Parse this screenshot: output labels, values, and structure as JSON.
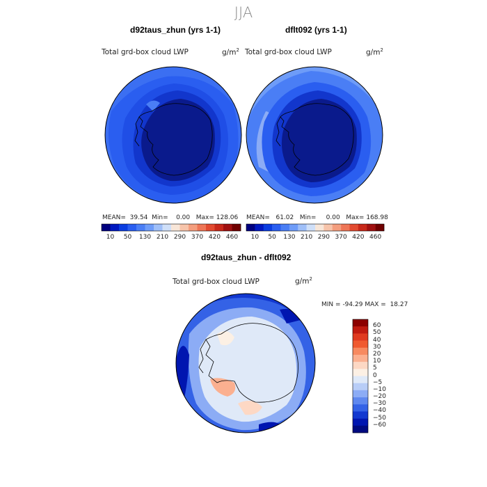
{
  "season": "JJA",
  "panels": [
    {
      "title": "d92taus_zhun (yrs 1-1)",
      "variable": "Total grd-box cloud LWP",
      "unit_base": "g/m",
      "unit_exp": "2",
      "mean_label": "MEAN=",
      "mean": "39.54",
      "min_label": "Min=",
      "min": "0.00",
      "max_label": "Max=",
      "max": "128.06"
    },
    {
      "title": "dflt092 (yrs 1-1)",
      "variable": "Total grd-box cloud LWP",
      "unit_base": "g/m",
      "unit_exp": "2",
      "mean_label": "MEAN=",
      "mean": "61.02",
      "min_label": "Min=",
      "min": "0.00",
      "max_label": "Max=",
      "max": "168.98"
    }
  ],
  "abs_colorbar": {
    "ticks": [
      "10",
      "50",
      "130",
      "210",
      "290",
      "370",
      "420",
      "460"
    ],
    "colors": [
      "#00007f",
      "#0018c0",
      "#0a3de0",
      "#2a5ef0",
      "#4a7ef5",
      "#6e9cf8",
      "#9fbff8",
      "#cfdff8",
      "#f8e6d8",
      "#f7c4aa",
      "#f49e7e",
      "#ee7556",
      "#e24a30",
      "#c8281a",
      "#a01010",
      "#700000"
    ]
  },
  "diff_panel": {
    "title": "d92taus_zhun - dflt092",
    "variable": "Total grd-box cloud LWP",
    "unit_base": "g/m",
    "unit_exp": "2",
    "min_label": "MIN =",
    "min": "-94.29",
    "max_label": "MAX =",
    "max": "18.27"
  },
  "diff_colorbar": {
    "labels": [
      "60",
      "50",
      "40",
      "30",
      "20",
      "10",
      "5",
      "0",
      "−5",
      "−10",
      "−20",
      "−30",
      "−40",
      "−50",
      "−60"
    ],
    "colors": [
      "#8c0000",
      "#c01a10",
      "#e03a20",
      "#f05a30",
      "#f78a60",
      "#fbb090",
      "#fdd8c4",
      "#fcf0e4",
      "#dfe9f8",
      "#b8cdf7",
      "#8cacf5",
      "#5f88ef",
      "#3462e6",
      "#1238d0",
      "#0016b0",
      "#000a80"
    ]
  },
  "colors": {
    "title_gray": "#888888",
    "ocean_abs_1": "#2a5ef0",
    "ocean_abs_2": "#4a7ef5",
    "ice_abs": "#0a1a8c",
    "diff_bg": "#dce8f8"
  }
}
